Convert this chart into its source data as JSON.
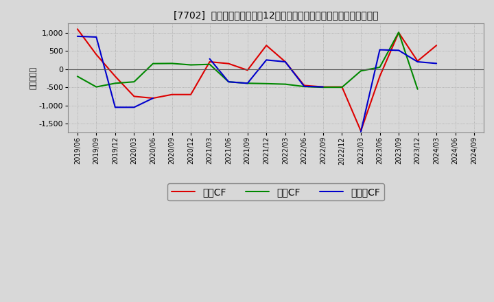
{
  "title": "[7702]  キャッシュフローの12か月移動合計の対前年同期増減額の推移",
  "ylabel": "（百万円）",
  "ylim": [
    -1750,
    1250
  ],
  "yticks": [
    -1500,
    -1000,
    -500,
    0,
    500,
    1000
  ],
  "dates": [
    "2019/06",
    "2019/09",
    "2019/12",
    "2020/03",
    "2020/06",
    "2020/09",
    "2020/12",
    "2021/03",
    "2021/06",
    "2021/09",
    "2021/12",
    "2022/03",
    "2022/06",
    "2022/09",
    "2022/12",
    "2023/03",
    "2023/06",
    "2023/09",
    "2023/12",
    "2024/03",
    "2024/06",
    "2024/09"
  ],
  "operating_cf": [
    1100,
    400,
    -200,
    -750,
    -800,
    -700,
    -700,
    200,
    150,
    -30,
    650,
    200,
    -450,
    -490,
    -490,
    -1700,
    -200,
    1000,
    220,
    650,
    null,
    null
  ],
  "investing_cf": [
    -200,
    -490,
    -390,
    -350,
    150,
    155,
    115,
    130,
    -350,
    -390,
    -400,
    -415,
    -480,
    -500,
    -500,
    -50,
    50,
    1010,
    -550,
    null,
    null,
    null
  ],
  "free_cf": [
    900,
    880,
    -1050,
    -1050,
    -800,
    null,
    null,
    280,
    -350,
    -390,
    250,
    200,
    -475,
    -490,
    null,
    -1720,
    530,
    515,
    200,
    155,
    null,
    null
  ],
  "operating_color": "#dd0000",
  "investing_color": "#008800",
  "free_color": "#0000cc",
  "legend_labels": [
    "営業CF",
    "投資CF",
    "フリーCF"
  ],
  "fig_bg": "#d8d8d8",
  "plot_bg": "#d8d8d8"
}
